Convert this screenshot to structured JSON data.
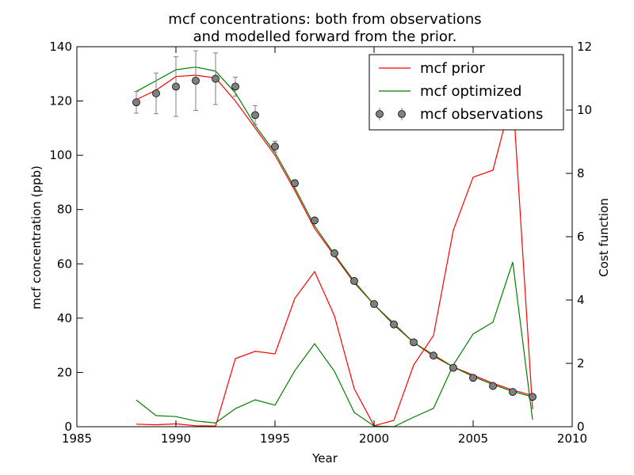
{
  "chart_data": {
    "type": "line",
    "title_lines": [
      "mcf concentrations: both from observations",
      "and modelled forward from the prior."
    ],
    "xlabel": "Year",
    "ylabel_left": "mcf concentration (ppb)",
    "ylabel_right": "Cost function",
    "xlim": [
      1985,
      2010
    ],
    "ylim_left": [
      0,
      140
    ],
    "ylim_right": [
      0,
      12
    ],
    "xticks": [
      1985,
      1990,
      1995,
      2000,
      2005,
      2010
    ],
    "yticks_left": [
      0,
      20,
      40,
      60,
      80,
      100,
      120,
      140
    ],
    "yticks_right": [
      0,
      2,
      4,
      6,
      8,
      10,
      12
    ],
    "legend_position": "top-right",
    "legend": {
      "prior": "mcf prior",
      "optimized": "mcf optimized",
      "observations": "mcf observations"
    },
    "x": [
      1988,
      1989,
      1990,
      1991,
      1992,
      1993,
      1994,
      1995,
      1996,
      1997,
      1998,
      1999,
      2000,
      2001,
      2002,
      2003,
      2004,
      2005,
      2006,
      2007,
      2008
    ],
    "series": [
      {
        "key": "prior_conc",
        "axis": "left",
        "color": "#ff0000",
        "values": [
          120.5,
          124,
          129,
          129.5,
          128.5,
          120,
          110,
          100,
          87,
          73,
          63,
          53,
          45,
          38,
          31,
          26,
          22,
          19,
          16,
          13.5,
          11.5
        ]
      },
      {
        "key": "opt_conc",
        "axis": "left",
        "color": "#008000",
        "values": [
          123.5,
          127.5,
          131.5,
          132.5,
          131,
          123,
          111,
          101,
          88,
          74,
          63.5,
          53.5,
          45,
          37.5,
          31,
          26.5,
          22,
          18.5,
          15.5,
          13,
          11
        ]
      },
      {
        "key": "prior_cost",
        "axis": "right",
        "color": "#ff0000",
        "values": [
          0.08,
          0.06,
          0.09,
          0.03,
          0.02,
          2.15,
          2.38,
          2.3,
          4.05,
          4.9,
          3.5,
          1.2,
          0.03,
          0.2,
          1.95,
          2.88,
          6.2,
          7.88,
          8.1,
          10.5,
          0.55
        ]
      },
      {
        "key": "opt_cost",
        "axis": "right",
        "color": "#008000",
        "values": [
          0.84,
          0.35,
          0.32,
          0.18,
          0.12,
          0.57,
          0.85,
          0.68,
          1.77,
          2.62,
          1.75,
          0.45,
          0.02,
          0.0,
          0.3,
          0.58,
          1.95,
          2.93,
          3.3,
          5.2,
          0.22
        ]
      }
    ],
    "observations": {
      "color": "#808080",
      "values": [
        119.5,
        122.8,
        125.3,
        127.5,
        128.2,
        125.3,
        114.8,
        103.2,
        89.7,
        76,
        63.9,
        53.7,
        45.2,
        37.7,
        31.1,
        26.2,
        21.7,
        18,
        15,
        12.8,
        11
      ],
      "errors": [
        4,
        7.5,
        11,
        11,
        9.5,
        3.5,
        3.5,
        2,
        1.2,
        1,
        1,
        1,
        1,
        1,
        1,
        1,
        1,
        1,
        0.8,
        0.8,
        0.8
      ]
    }
  }
}
